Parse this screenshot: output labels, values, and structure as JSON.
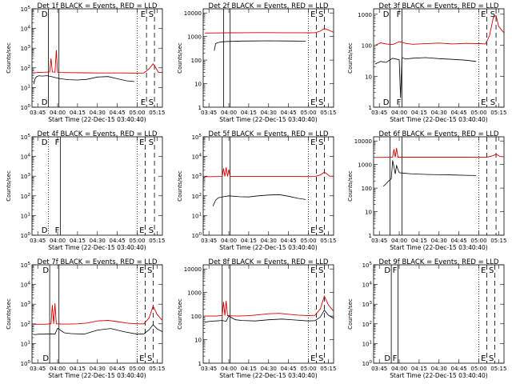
{
  "xtick_labels": [
    "03:45",
    "04:00",
    "04:15",
    "04:30",
    "04:45",
    "05:00",
    "05:15"
  ],
  "xlabel": "Start Time (22-Dec-15 03:40:40)",
  "ylabel": "Counts/sec",
  "colors": {
    "events": "#000000",
    "lld": "#d40000"
  },
  "chart_data": [
    {
      "type": "line",
      "title": "Det 1f BLACK = Events, RED = LLD",
      "yscale": "log",
      "ylim": [
        1,
        100000
      ],
      "ytick_labels": [
        "10^0",
        "10^1",
        "10^2",
        "10^3",
        "10^4",
        "10^5"
      ],
      "xlim": [
        "03:40:40",
        "05:19:00"
      ],
      "markers": [
        {
          "time": "03:53",
          "label": "D",
          "style": "solid"
        },
        {
          "time": "04:01",
          "label": "",
          "style": "solid"
        },
        {
          "time": "05:00",
          "label": "",
          "style": "dotted"
        },
        {
          "time": "05:07",
          "label": "E",
          "style": "dashed"
        },
        {
          "time": "05:13",
          "label": "S",
          "style": "dashed"
        }
      ],
      "series": [
        {
          "name": "Events",
          "x": [
            "03:42",
            "03:43",
            "03:44",
            "03:46",
            "03:48",
            "03:52",
            "03:56",
            "04:00",
            "04:02",
            "04:08",
            "04:15",
            "04:22",
            "04:30",
            "04:38",
            "04:45",
            "04:52",
            "04:58"
          ],
          "y": [
            15,
            28,
            35,
            40,
            38,
            40,
            35,
            30,
            28,
            25,
            24,
            26,
            34,
            36,
            28,
            22,
            20
          ]
        },
        {
          "name": "LLD",
          "x": [
            "03:42",
            "03:45",
            "03:50",
            "03:54",
            "03:55",
            "03:56",
            "03:58",
            "03:59",
            "04:00",
            "04:02",
            "04:10",
            "04:20",
            "04:30",
            "04:40",
            "04:50",
            "05:00",
            "05:05",
            "05:09",
            "05:12",
            "05:14",
            "05:16",
            "05:19"
          ],
          "y": [
            55,
            58,
            60,
            62,
            300,
            62,
            60,
            800,
            60,
            58,
            57,
            56,
            55,
            55,
            55,
            54,
            55,
            90,
            160,
            100,
            60,
            58
          ]
        }
      ]
    },
    {
      "type": "line",
      "title": "Det 2f BLACK = Events, RED = LLD",
      "yscale": "log",
      "ylim": [
        1,
        15000
      ],
      "ytick_labels": [
        "1",
        "10",
        "100",
        "1000",
        "10000"
      ],
      "xlim": [
        "03:40:40",
        "05:19:00"
      ],
      "markers": [
        {
          "time": "03:56",
          "label": "",
          "style": "solid"
        },
        {
          "time": "04:01",
          "label": "",
          "style": "solid"
        },
        {
          "time": "05:00",
          "label": "",
          "style": "dotted"
        },
        {
          "time": "05:06",
          "label": "E",
          "style": "dashed"
        },
        {
          "time": "05:12",
          "label": "S",
          "style": "dashed"
        }
      ],
      "series": [
        {
          "name": "Events",
          "x": [
            "03:49",
            "03:50",
            "03:52",
            "03:55",
            "04:00",
            "04:10",
            "04:20",
            "04:30",
            "04:40",
            "04:50",
            "04:58"
          ],
          "y": [
            250,
            500,
            560,
            600,
            620,
            640,
            650,
            660,
            650,
            640,
            630
          ]
        },
        {
          "name": "LLD",
          "x": [
            "03:42",
            "03:50",
            "04:00",
            "04:10",
            "04:20",
            "04:30",
            "04:40",
            "04:50",
            "05:00",
            "05:05",
            "05:09",
            "05:12",
            "05:15",
            "05:19"
          ],
          "y": [
            1400,
            1420,
            1440,
            1450,
            1460,
            1460,
            1450,
            1450,
            1440,
            1450,
            1700,
            2200,
            1900,
            1500
          ]
        }
      ]
    },
    {
      "type": "line",
      "title": "Det 3f BLACK = Events, RED = LLD",
      "yscale": "log",
      "ylim": [
        1,
        1500
      ],
      "ytick_labels": [
        "1",
        "10",
        "100",
        "1000"
      ],
      "xlim": [
        "03:40:40",
        "05:19:00"
      ],
      "markers": [
        {
          "time": "03:53",
          "label": "D",
          "style": "solid"
        },
        {
          "time": "04:02",
          "label": "F",
          "style": "solid"
        },
        {
          "time": "05:00",
          "label": "",
          "style": "dotted"
        },
        {
          "time": "05:06",
          "label": "E",
          "style": "dashed"
        },
        {
          "time": "05:13",
          "label": "S",
          "style": "dashed"
        }
      ],
      "series": [
        {
          "name": "Events",
          "x": [
            "03:42",
            "03:46",
            "03:50",
            "03:55",
            "04:00",
            "04:01",
            "04:02",
            "04:05",
            "04:10",
            "04:20",
            "04:30",
            "04:40",
            "04:50",
            "04:58"
          ],
          "y": [
            25,
            30,
            28,
            38,
            34,
            2,
            40,
            36,
            38,
            40,
            37,
            35,
            33,
            30
          ]
        },
        {
          "name": "LLD",
          "x": [
            "03:42",
            "03:46",
            "03:50",
            "03:55",
            "04:00",
            "04:05",
            "04:10",
            "04:20",
            "04:30",
            "04:40",
            "04:50",
            "05:00",
            "05:05",
            "05:08",
            "05:11",
            "05:13",
            "05:15",
            "05:19"
          ],
          "y": [
            100,
            120,
            110,
            105,
            130,
            115,
            108,
            112,
            118,
            110,
            115,
            113,
            110,
            200,
            800,
            900,
            400,
            250
          ]
        }
      ]
    },
    {
      "type": "line",
      "title": "Det 4f BLACK = Events, RED = LLD",
      "yscale": "log",
      "ylim": [
        1,
        100000
      ],
      "ytick_labels": [
        "10^0",
        "10^1",
        "10^2",
        "10^3",
        "10^4",
        "10^5"
      ],
      "xlim": [
        "03:40:40",
        "05:19:00"
      ],
      "markers": [
        {
          "time": "03:53",
          "label": "D",
          "style": "dotted"
        },
        {
          "time": "04:02",
          "label": "F",
          "style": "solid"
        },
        {
          "time": "05:00",
          "label": "",
          "style": "dotted"
        },
        {
          "time": "05:06",
          "label": "E",
          "style": "dashed"
        },
        {
          "time": "05:13",
          "label": "S",
          "style": "dashed"
        }
      ],
      "series": []
    },
    {
      "type": "line",
      "title": "Det 5f BLACK = Events, RED = LLD",
      "yscale": "log",
      "ylim": [
        1,
        100000
      ],
      "ytick_labels": [
        "10^0",
        "10^1",
        "10^2",
        "10^3",
        "10^4",
        "10^5"
      ],
      "xlim": [
        "03:40:40",
        "05:19:00"
      ],
      "markers": [
        {
          "time": "03:55",
          "label": "",
          "style": "solid"
        },
        {
          "time": "04:01",
          "label": "",
          "style": "solid"
        },
        {
          "time": "05:00",
          "label": "",
          "style": "dotted"
        },
        {
          "time": "05:06",
          "label": "E",
          "style": "dashed"
        },
        {
          "time": "05:12",
          "label": "S",
          "style": "dashed"
        }
      ],
      "series": [
        {
          "name": "Events",
          "x": [
            "03:48",
            "03:50",
            "03:52",
            "03:56",
            "04:00",
            "04:08",
            "04:15",
            "04:22",
            "04:30",
            "04:38",
            "04:45",
            "04:52",
            "04:58"
          ],
          "y": [
            30,
            60,
            80,
            90,
            100,
            90,
            88,
            100,
            110,
            115,
            95,
            75,
            65
          ]
        },
        {
          "name": "LLD",
          "x": [
            "03:42",
            "03:50",
            "03:55",
            "03:56",
            "03:57",
            "03:58",
            "03:59",
            "04:00",
            "04:01",
            "04:02",
            "04:10",
            "04:20",
            "04:30",
            "04:40",
            "04:50",
            "05:00",
            "05:05",
            "05:09",
            "05:12",
            "05:14",
            "05:16",
            "05:19"
          ],
          "y": [
            940,
            950,
            960,
            2500,
            960,
            2800,
            960,
            2200,
            960,
            960,
            960,
            960,
            960,
            960,
            960,
            955,
            960,
            1150,
            1600,
            1300,
            1000,
            980
          ]
        }
      ]
    },
    {
      "type": "line",
      "title": "Det 6f BLACK = Events, RED = LLD",
      "yscale": "log",
      "ylim": [
        1,
        15000
      ],
      "ytick_labels": [
        "1",
        "10",
        "100",
        "1000",
        "10000"
      ],
      "xlim": [
        "03:40:40",
        "05:19:00"
      ],
      "markers": [
        {
          "time": "03:53",
          "label": "",
          "style": "solid"
        },
        {
          "time": "04:02",
          "label": "",
          "style": "solid"
        },
        {
          "time": "05:00",
          "label": "",
          "style": "dotted"
        },
        {
          "time": "05:06",
          "label": "",
          "style": "dashed"
        },
        {
          "time": "05:13",
          "label": "",
          "style": "dashed"
        }
      ],
      "series": [
        {
          "name": "Events",
          "x": [
            "03:48",
            "03:50",
            "03:52",
            "03:54",
            "03:55",
            "03:56",
            "03:57",
            "03:58",
            "04:00",
            "04:05",
            "04:10",
            "04:20",
            "04:30",
            "04:40",
            "04:50",
            "04:58"
          ],
          "y": [
            120,
            150,
            200,
            250,
            1500,
            800,
            400,
            900,
            450,
            420,
            400,
            380,
            370,
            360,
            350,
            340
          ]
        },
        {
          "name": "LLD",
          "x": [
            "03:42",
            "03:50",
            "03:55",
            "03:56",
            "03:57",
            "03:58",
            "03:59",
            "04:00",
            "04:05",
            "04:10",
            "04:20",
            "04:30",
            "04:40",
            "04:50",
            "05:00",
            "05:06",
            "05:10",
            "05:13",
            "05:16",
            "05:19"
          ],
          "y": [
            2000,
            2020,
            2050,
            4500,
            2050,
            5000,
            2050,
            2050,
            2050,
            2050,
            2040,
            2040,
            2040,
            2040,
            2030,
            2050,
            2300,
            2700,
            2200,
            2100
          ]
        }
      ]
    },
    {
      "type": "line",
      "title": "Det 7f BLACK = Events, RED = LLD",
      "yscale": "log",
      "ylim": [
        1,
        100000
      ],
      "ytick_labels": [
        "10^0",
        "10^1",
        "10^2",
        "10^3",
        "10^4",
        "10^5"
      ],
      "xlim": [
        "03:40:40",
        "05:19:00"
      ],
      "markers": [
        {
          "time": "03:54",
          "label": "D",
          "style": "solid"
        },
        {
          "time": "04:01",
          "label": "",
          "style": "solid"
        },
        {
          "time": "05:00",
          "label": "",
          "style": "dotted"
        },
        {
          "time": "05:06",
          "label": "E",
          "style": "dashed"
        },
        {
          "time": "05:12",
          "label": "S",
          "style": "dashed"
        }
      ],
      "series": [
        {
          "name": "Events",
          "x": [
            "03:42",
            "03:46",
            "03:50",
            "03:55",
            "03:58",
            "04:00",
            "04:05",
            "04:10",
            "04:20",
            "04:30",
            "04:40",
            "04:50",
            "05:00",
            "05:05",
            "05:09",
            "05:12",
            "05:15",
            "05:19"
          ],
          "y": [
            28,
            30,
            30,
            31,
            30,
            60,
            35,
            32,
            30,
            48,
            58,
            40,
            30,
            31,
            50,
            90,
            55,
            40
          ]
        },
        {
          "name": "LLD",
          "x": [
            "03:42",
            "03:50",
            "03:55",
            "03:56",
            "03:57",
            "03:58",
            "03:59",
            "04:00",
            "04:02",
            "04:08",
            "04:15",
            "04:22",
            "04:30",
            "04:38",
            "04:45",
            "04:52",
            "05:00",
            "05:05",
            "05:09",
            "05:12",
            "05:15",
            "05:19"
          ],
          "y": [
            95,
            95,
            100,
            900,
            100,
            1100,
            100,
            100,
            98,
            97,
            100,
            110,
            140,
            150,
            130,
            110,
            100,
            100,
            200,
            800,
            300,
            150
          ]
        }
      ]
    },
    {
      "type": "line",
      "title": "Det 8f BLACK = Events, RED = LLD",
      "yscale": "log",
      "ylim": [
        1,
        15000
      ],
      "ytick_labels": [
        "1",
        "10",
        "100",
        "1000",
        "10000"
      ],
      "xlim": [
        "03:40:40",
        "05:19:00"
      ],
      "markers": [
        {
          "time": "03:55",
          "label": "",
          "style": "solid"
        },
        {
          "time": "04:01",
          "label": "",
          "style": "solid"
        },
        {
          "time": "05:00",
          "label": "",
          "style": "dotted"
        },
        {
          "time": "05:06",
          "label": "E",
          "style": "dashed"
        },
        {
          "time": "05:12",
          "label": "S",
          "style": "dashed"
        }
      ],
      "series": [
        {
          "name": "Events",
          "x": [
            "03:42",
            "03:46",
            "03:50",
            "03:55",
            "03:58",
            "04:00",
            "04:05",
            "04:10",
            "04:20",
            "04:30",
            "04:40",
            "04:50",
            "05:00",
            "05:05",
            "05:09",
            "05:12",
            "05:15",
            "05:19"
          ],
          "y": [
            55,
            60,
            62,
            65,
            60,
            100,
            70,
            65,
            62,
            70,
            75,
            68,
            62,
            64,
            90,
            180,
            110,
            80
          ]
        },
        {
          "name": "LLD",
          "x": [
            "03:42",
            "03:50",
            "03:55",
            "03:56",
            "03:57",
            "03:58",
            "03:59",
            "04:00",
            "04:02",
            "04:08",
            "04:15",
            "04:22",
            "04:30",
            "04:38",
            "04:45",
            "04:52",
            "05:00",
            "05:05",
            "05:09",
            "05:12",
            "05:15",
            "05:19"
          ],
          "y": [
            100,
            100,
            105,
            400,
            105,
            450,
            105,
            105,
            102,
            100,
            104,
            112,
            125,
            130,
            120,
            110,
            105,
            108,
            200,
            700,
            300,
            160
          ]
        }
      ]
    },
    {
      "type": "line",
      "title": "Det 9f BLACK = Events, RED = LLD",
      "yscale": "log",
      "ylim": [
        1,
        100000
      ],
      "ytick_labels": [
        "10^0",
        "10^1",
        "10^2",
        "10^3",
        "10^4",
        "10^5"
      ],
      "xlim": [
        "03:40:40",
        "05:19:00"
      ],
      "markers": [
        {
          "time": "03:54",
          "label": "D",
          "style": "solid"
        },
        {
          "time": "03:59",
          "label": "F",
          "style": "solid"
        },
        {
          "time": "05:00",
          "label": "",
          "style": "dotted"
        },
        {
          "time": "05:06",
          "label": "E",
          "style": "dashed"
        },
        {
          "time": "05:12",
          "label": "S",
          "style": "dashed"
        }
      ],
      "series": []
    }
  ]
}
